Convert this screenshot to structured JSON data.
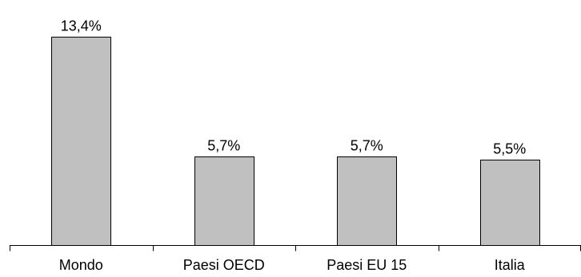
{
  "chart_data": {
    "type": "bar",
    "categories": [
      "Mondo",
      "Paesi OECD",
      "Paesi EU 15",
      "Italia"
    ],
    "values": [
      13.4,
      5.7,
      5.7,
      5.5
    ],
    "data_labels": [
      "13,4%",
      "5,7%",
      "5,7%",
      "5,5%"
    ],
    "title": "",
    "xlabel": "",
    "ylabel": "",
    "ylim": [
      0,
      14.4
    ],
    "grid": false,
    "legend": "none",
    "colors": {
      "bar_fill": "#c0c0c0",
      "bar_stroke": "#000000",
      "axis": "#000000",
      "text": "#000000"
    }
  }
}
